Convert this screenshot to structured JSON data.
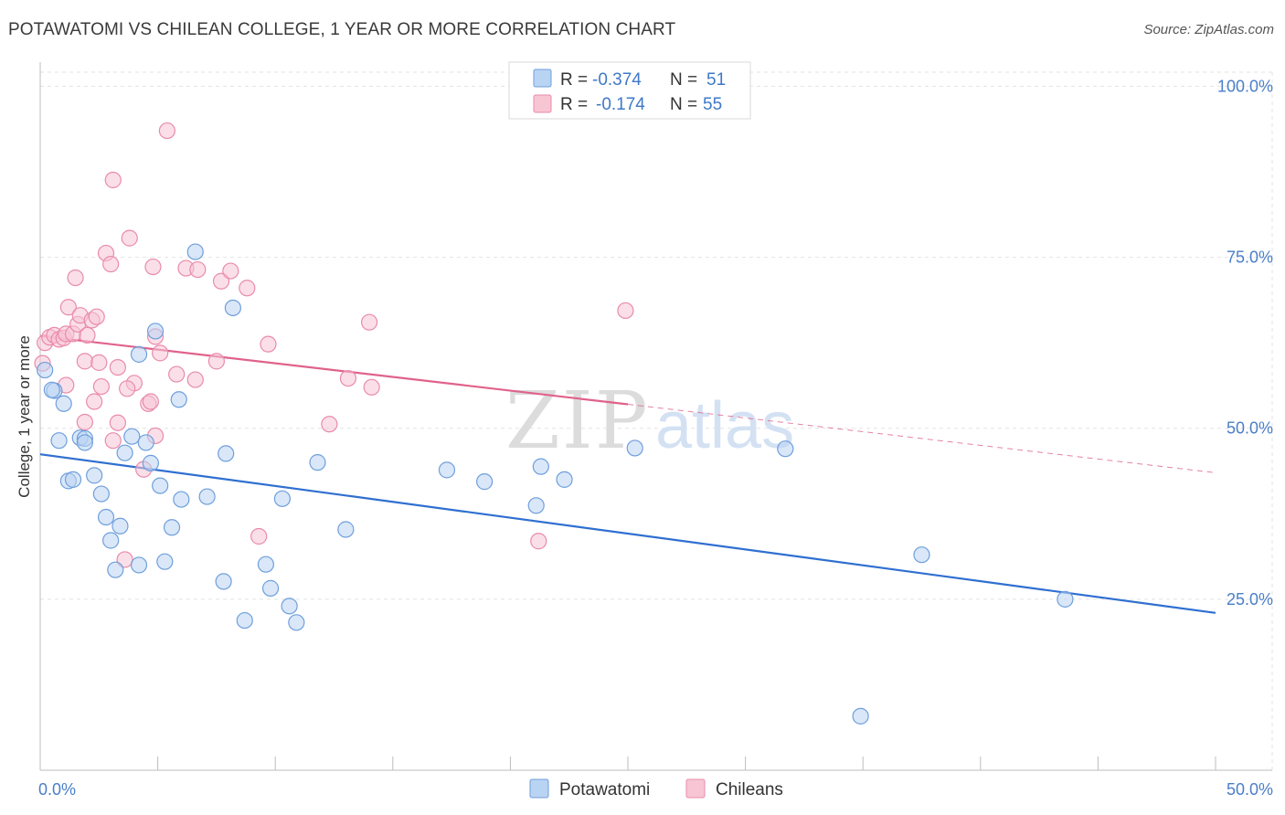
{
  "title": "POTAWATOMI VS CHILEAN COLLEGE, 1 YEAR OR MORE CORRELATION CHART",
  "source": "Source: ZipAtlas.com",
  "watermark": {
    "zip": "ZIP",
    "atlas": "atlas"
  },
  "colors": {
    "blue_fill": "#b9d3f2",
    "blue_stroke": "#6f9fdc",
    "blue_line": "#2f6fd0",
    "pink_fill": "#f8c5d5",
    "pink_stroke": "#e98bab",
    "pink_line": "#e0628a",
    "grid": "#e3e3e3",
    "tick_text": "#4a7ec8"
  },
  "legend": {
    "rows": [
      {
        "r_label": "R =",
        "r_value": "-0.374",
        "n_label": "N =",
        "n_value": "51"
      },
      {
        "r_label": "R =",
        "r_value": "-0.174",
        "n_label": "N =",
        "n_value": "55"
      }
    ]
  },
  "chart_data": {
    "type": "scatter",
    "xlabel": "",
    "ylabel": "College, 1 year or more",
    "xlim": [
      0,
      50
    ],
    "ylim": [
      0,
      105
    ],
    "x_tick_labels": [
      {
        "value": 0,
        "label": "0.0%"
      },
      {
        "value": 50,
        "label": "50.0%"
      }
    ],
    "y_tick_labels": [
      {
        "value": 25,
        "label": "25.0%"
      },
      {
        "value": 50,
        "label": "50.0%"
      },
      {
        "value": 75,
        "label": "75.0%"
      },
      {
        "value": 100,
        "label": "100.0%"
      }
    ],
    "grid": true,
    "legend_position": "top-center",
    "series": [
      {
        "name": "Potawatomi",
        "trend": {
          "x0": 0,
          "y0": 46.2,
          "x1": 50,
          "y1": 23.0
        },
        "points": [
          [
            0.2,
            58.5
          ],
          [
            0.6,
            55.5
          ],
          [
            1.0,
            53.6
          ],
          [
            0.8,
            48.2
          ],
          [
            1.7,
            48.6
          ],
          [
            1.9,
            48.5
          ],
          [
            1.9,
            47.9
          ],
          [
            3.9,
            48.8
          ],
          [
            4.5,
            47.9
          ],
          [
            3.6,
            46.4
          ],
          [
            4.7,
            44.9
          ],
          [
            2.3,
            43.1
          ],
          [
            1.2,
            42.3
          ],
          [
            1.4,
            42.5
          ],
          [
            5.1,
            41.6
          ],
          [
            2.6,
            40.4
          ],
          [
            6.0,
            39.6
          ],
          [
            7.1,
            40.0
          ],
          [
            2.8,
            37.0
          ],
          [
            3.4,
            35.7
          ],
          [
            5.6,
            35.5
          ],
          [
            3.0,
            33.6
          ],
          [
            5.3,
            30.5
          ],
          [
            3.2,
            29.3
          ],
          [
            4.2,
            30.0
          ],
          [
            7.8,
            27.6
          ],
          [
            4.9,
            64.2
          ],
          [
            4.2,
            60.8
          ],
          [
            5.9,
            54.2
          ],
          [
            6.6,
            75.8
          ],
          [
            8.2,
            67.6
          ],
          [
            7.9,
            46.3
          ],
          [
            11.8,
            45.0
          ],
          [
            10.3,
            39.7
          ],
          [
            13.0,
            35.2
          ],
          [
            9.6,
            30.1
          ],
          [
            9.8,
            26.6
          ],
          [
            10.6,
            24.0
          ],
          [
            10.9,
            21.6
          ],
          [
            8.7,
            21.9
          ],
          [
            17.3,
            43.9
          ],
          [
            18.9,
            42.2
          ],
          [
            21.3,
            44.4
          ],
          [
            22.3,
            42.5
          ],
          [
            21.1,
            38.7
          ],
          [
            25.3,
            47.1
          ],
          [
            31.7,
            47.0
          ],
          [
            37.5,
            31.5
          ],
          [
            43.6,
            25.0
          ],
          [
            34.9,
            7.9
          ],
          [
            0.5,
            55.6
          ]
        ]
      },
      {
        "name": "Chileans",
        "trend": {
          "x0": 0,
          "y0": 63.5,
          "x1": 25,
          "y1": 53.5
        },
        "trend_ext": {
          "x0": 25,
          "y0": 53.5,
          "x1": 50,
          "y1": 43.5
        },
        "points": [
          [
            0.1,
            59.5
          ],
          [
            0.2,
            62.5
          ],
          [
            0.4,
            63.3
          ],
          [
            0.6,
            63.6
          ],
          [
            0.8,
            63.0
          ],
          [
            1.0,
            63.2
          ],
          [
            1.1,
            63.8
          ],
          [
            1.2,
            67.7
          ],
          [
            1.4,
            63.8
          ],
          [
            1.6,
            65.2
          ],
          [
            1.7,
            66.5
          ],
          [
            2.0,
            63.6
          ],
          [
            2.2,
            65.8
          ],
          [
            2.4,
            66.3
          ],
          [
            1.9,
            59.8
          ],
          [
            2.5,
            59.6
          ],
          [
            3.3,
            58.9
          ],
          [
            2.6,
            56.1
          ],
          [
            4.0,
            56.6
          ],
          [
            3.7,
            55.8
          ],
          [
            1.1,
            56.3
          ],
          [
            2.3,
            53.9
          ],
          [
            4.6,
            53.6
          ],
          [
            4.7,
            53.9
          ],
          [
            1.9,
            50.9
          ],
          [
            3.3,
            50.8
          ],
          [
            4.9,
            48.9
          ],
          [
            3.1,
            48.2
          ],
          [
            4.4,
            44.0
          ],
          [
            1.5,
            72.0
          ],
          [
            2.8,
            75.6
          ],
          [
            3.0,
            74.0
          ],
          [
            3.8,
            77.8
          ],
          [
            4.8,
            73.6
          ],
          [
            3.1,
            86.3
          ],
          [
            5.4,
            93.5
          ],
          [
            4.9,
            63.4
          ],
          [
            5.1,
            61.0
          ],
          [
            5.8,
            57.9
          ],
          [
            6.6,
            57.1
          ],
          [
            6.2,
            73.4
          ],
          [
            6.7,
            73.2
          ],
          [
            7.7,
            71.5
          ],
          [
            8.1,
            73.0
          ],
          [
            8.8,
            70.5
          ],
          [
            9.7,
            62.3
          ],
          [
            12.3,
            50.6
          ],
          [
            13.1,
            57.3
          ],
          [
            14.0,
            65.5
          ],
          [
            14.1,
            56.0
          ],
          [
            9.3,
            34.2
          ],
          [
            3.6,
            30.8
          ],
          [
            21.2,
            33.5
          ],
          [
            24.9,
            67.2
          ],
          [
            7.5,
            59.8
          ]
        ]
      }
    ]
  },
  "bottom_legend": [
    {
      "label": "Potawatomi"
    },
    {
      "label": "Chileans"
    }
  ]
}
